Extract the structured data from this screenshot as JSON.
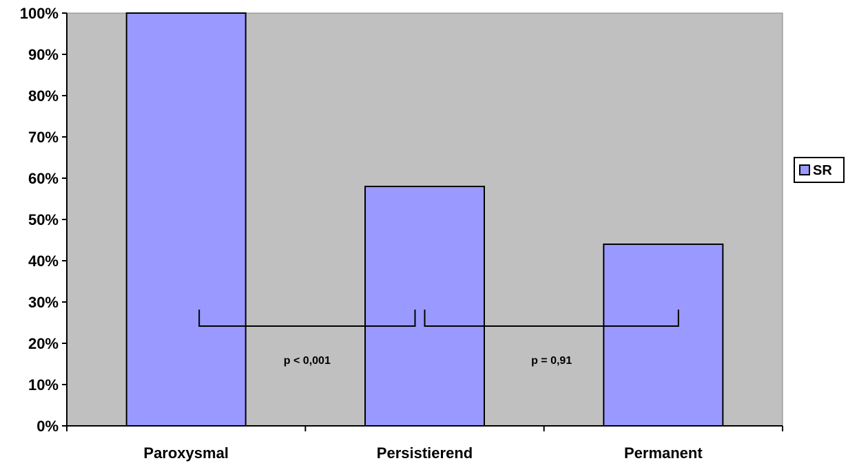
{
  "chart_data": {
    "type": "bar",
    "categories": [
      "Paroxysmal",
      "Persistierend",
      "Permanent"
    ],
    "series": [
      {
        "name": "SR",
        "values": [
          100,
          58,
          44
        ]
      }
    ],
    "ylim": [
      0,
      100
    ],
    "yticks": [
      "0%",
      "10%",
      "20%",
      "30%",
      "40%",
      "50%",
      "60%",
      "70%",
      "80%",
      "90%",
      "100%"
    ],
    "title": "",
    "xlabel": "",
    "ylabel": "",
    "grid": false,
    "legend_position": "right",
    "annotations": [
      {
        "label": "p < 0,001",
        "from": "Paroxysmal",
        "to": "Persistierend",
        "level": 25
      },
      {
        "label": "p = 0,91",
        "from": "Persistierend",
        "to": "Permanent",
        "level": 25
      }
    ],
    "colors": {
      "plot_background": "#c0c0c0",
      "bar_fill": "#9999ff",
      "bar_stroke": "#000000"
    }
  }
}
